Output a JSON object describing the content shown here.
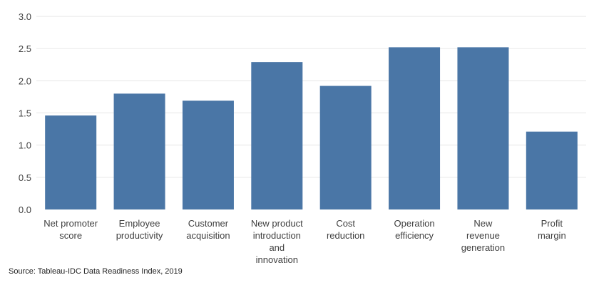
{
  "chart_data": {
    "type": "bar",
    "categories": [
      "Net promoter score",
      "Employee productivity",
      "Customer acquisition",
      "New product introduction and innovation",
      "Cost reduction",
      "Operation efficiency",
      "New revenue generation",
      "Profit margin"
    ],
    "category_lines": [
      [
        "Net promoter",
        "score"
      ],
      [
        "Employee",
        "productivity"
      ],
      [
        "Customer",
        "acquisition"
      ],
      [
        "New product",
        "introduction",
        "and",
        "innovation"
      ],
      [
        "Cost",
        "reduction"
      ],
      [
        "Operation",
        "efficiency"
      ],
      [
        "New",
        "revenue",
        "generation"
      ],
      [
        "Profit",
        "margin"
      ]
    ],
    "values": [
      1.46,
      1.8,
      1.69,
      2.29,
      1.92,
      2.52,
      2.52,
      1.21
    ],
    "title": "",
    "xlabel": "",
    "ylabel": "",
    "ylim": [
      0,
      3.0
    ],
    "yticks": [
      "0.0",
      "0.5",
      "1.0",
      "1.5",
      "2.0",
      "2.5",
      "3.0"
    ],
    "grid": true,
    "legend": "none",
    "colors": {
      "bar": "#4A76A6",
      "grid": "#E6E6E6",
      "text": "#404040"
    }
  },
  "source_note": "Source: Tableau-IDC Data Readiness Index, 2019"
}
